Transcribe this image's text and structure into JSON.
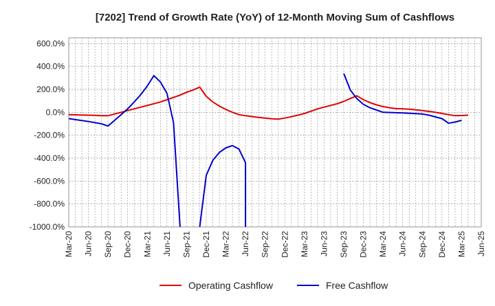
{
  "chart_data": {
    "type": "line",
    "title": "[7202]  Trend of Growth Rate (YoY) of 12-Month Moving Sum of Cashflows",
    "xlabel": "",
    "ylabel": "",
    "ylim": [
      -1000,
      650
    ],
    "y_ticks": [
      {
        "value": 600,
        "label": "600.0%"
      },
      {
        "value": 400,
        "label": "400.0%"
      },
      {
        "value": 200,
        "label": "200.0%"
      },
      {
        "value": 0,
        "label": "0.0%"
      },
      {
        "value": -200,
        "label": "-200.0%"
      },
      {
        "value": -400,
        "label": "-400.0%"
      },
      {
        "value": -600,
        "label": "-600.0%"
      },
      {
        "value": -800,
        "label": "-800.0%"
      },
      {
        "value": -1000,
        "label": "-1000.0%"
      }
    ],
    "x_categories": [
      "Mar-20",
      "Jun-20",
      "Sep-20",
      "Dec-20",
      "Mar-21",
      "Jun-21",
      "Sep-21",
      "Dec-21",
      "Mar-22",
      "Jun-22",
      "Sep-22",
      "Dec-22",
      "Mar-23",
      "Jun-23",
      "Sep-23",
      "Dec-23",
      "Mar-24",
      "Jun-24",
      "Sep-24",
      "Dec-24",
      "Mar-25",
      "Jun-25"
    ],
    "grid": true,
    "legend_position": "bottom",
    "series": [
      {
        "name": "Operating Cashflow",
        "color": "#e00000",
        "points": [
          [
            "Mar-20",
            -20
          ],
          [
            "Apr-20",
            -22
          ],
          [
            "May-20",
            -24
          ],
          [
            "Jun-20",
            -25
          ],
          [
            "Jul-20",
            -27
          ],
          [
            "Aug-20",
            -29
          ],
          [
            "Sep-20",
            -30
          ],
          [
            "Oct-20",
            -15
          ],
          [
            "Nov-20",
            0
          ],
          [
            "Dec-20",
            15
          ],
          [
            "Jan-21",
            30
          ],
          [
            "Feb-21",
            45
          ],
          [
            "Mar-21",
            60
          ],
          [
            "Apr-21",
            75
          ],
          [
            "May-21",
            90
          ],
          [
            "Jun-21",
            110
          ],
          [
            "Jul-21",
            130
          ],
          [
            "Aug-21",
            150
          ],
          [
            "Sep-21",
            175
          ],
          [
            "Oct-21",
            195
          ],
          [
            "Nov-21",
            220
          ],
          [
            "Dec-21",
            140
          ],
          [
            "Jan-22",
            90
          ],
          [
            "Feb-22",
            55
          ],
          [
            "Mar-22",
            25
          ],
          [
            "Apr-22",
            0
          ],
          [
            "May-22",
            -20
          ],
          [
            "Jun-22",
            -30
          ],
          [
            "Jul-22",
            -37
          ],
          [
            "Aug-22",
            -44
          ],
          [
            "Sep-22",
            -50
          ],
          [
            "Oct-22",
            -56
          ],
          [
            "Nov-22",
            -60
          ],
          [
            "Dec-22",
            -50
          ],
          [
            "Jan-23",
            -38
          ],
          [
            "Feb-23",
            -25
          ],
          [
            "Mar-23",
            -10
          ],
          [
            "Apr-23",
            10
          ],
          [
            "May-23",
            30
          ],
          [
            "Jun-23",
            45
          ],
          [
            "Jul-23",
            60
          ],
          [
            "Aug-23",
            75
          ],
          [
            "Sep-23",
            95
          ],
          [
            "Oct-23",
            120
          ],
          [
            "Nov-23",
            145
          ],
          [
            "Dec-23",
            110
          ],
          [
            "Jan-24",
            85
          ],
          [
            "Feb-24",
            65
          ],
          [
            "Mar-24",
            50
          ],
          [
            "Apr-24",
            40
          ],
          [
            "May-24",
            32
          ],
          [
            "Jun-24",
            30
          ],
          [
            "Jul-24",
            28
          ],
          [
            "Aug-24",
            22
          ],
          [
            "Sep-24",
            15
          ],
          [
            "Oct-24",
            8
          ],
          [
            "Nov-24",
            0
          ],
          [
            "Dec-24",
            -10
          ],
          [
            "Jan-25",
            -20
          ],
          [
            "Feb-25",
            -30
          ],
          [
            "Mar-25",
            -28
          ],
          [
            "Apr-25",
            -25
          ]
        ]
      },
      {
        "name": "Free Cashflow",
        "color": "#0000cc",
        "segments": [
          [
            [
              "Mar-20",
              -55
            ],
            [
              "Jun-20",
              -80
            ],
            [
              "Aug-20",
              -100
            ],
            [
              "Sep-20",
              -120
            ],
            [
              "Oct-20",
              -70
            ],
            [
              "Nov-20",
              -20
            ],
            [
              "Dec-20",
              30
            ],
            [
              "Jan-21",
              90
            ],
            [
              "Feb-21",
              155
            ],
            [
              "Mar-21",
              230
            ],
            [
              "Apr-21",
              320
            ],
            [
              "May-21",
              265
            ],
            [
              "Jun-21",
              165
            ],
            [
              "Jul-21",
              -90
            ],
            [
              "Aug-21",
              -1000
            ]
          ],
          [
            [
              "Nov-21",
              -1000
            ],
            [
              "Dec-21",
              -550
            ],
            [
              "Jan-22",
              -420
            ],
            [
              "Feb-22",
              -350
            ],
            [
              "Mar-22",
              -310
            ],
            [
              "Apr-22",
              -290
            ],
            [
              "May-22",
              -320
            ],
            [
              "Jun-22",
              -440
            ],
            [
              "Jun-22",
              -1000
            ]
          ],
          [
            [
              "Sep-23",
              340
            ],
            [
              "Oct-23",
              195
            ],
            [
              "Nov-23",
              120
            ],
            [
              "Dec-23",
              70
            ],
            [
              "Jan-24",
              40
            ],
            [
              "Feb-24",
              20
            ],
            [
              "Mar-24",
              0
            ],
            [
              "Jun-24",
              -5
            ],
            [
              "Sep-24",
              -15
            ],
            [
              "Oct-24",
              -25
            ],
            [
              "Dec-24",
              -55
            ],
            [
              "Jan-25",
              -95
            ],
            [
              "Feb-25",
              -85
            ],
            [
              "Mar-25",
              -70
            ]
          ]
        ]
      }
    ]
  }
}
